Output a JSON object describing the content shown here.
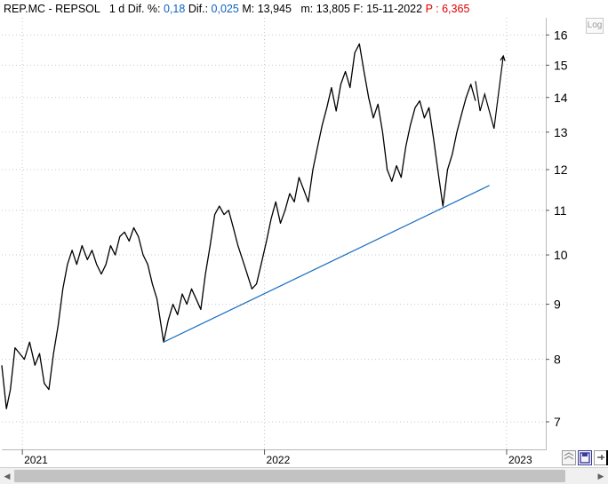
{
  "header": {
    "symbol": "REP.MC - REPSOL",
    "period": "1 d",
    "pct_label": "Dif. %:",
    "pct_value": "0,18",
    "dif_label": "Dif.:",
    "dif_value": "0,025",
    "max_label": "M:",
    "max_value": "13,945",
    "min_label": "m:",
    "min_value": "13,805",
    "date_label": "F:",
    "date_value": "15-11-2022",
    "p_label": "P :",
    "p_value": "6,365"
  },
  "log_button": "Log",
  "colors": {
    "price": "#000000",
    "trendline": "#1a6fbf",
    "grid": "#c8c8c8",
    "red": "#e00000"
  },
  "chart_data": {
    "type": "line",
    "scale": "log",
    "ylim": [
      6.6,
      16.6
    ],
    "y_ticks": [
      7,
      8,
      9,
      10,
      11,
      12,
      13,
      14,
      15,
      16
    ],
    "x_ticks": [
      "2021",
      "2022",
      "2023"
    ],
    "xlim": [
      "2020-12-01",
      "2023-03-01"
    ],
    "grid": true,
    "series": [
      {
        "kind": "price",
        "points": [
          [
            "2020-12-01",
            7.9
          ],
          [
            "2020-12-08",
            7.2
          ],
          [
            "2020-12-14",
            7.5
          ],
          [
            "2020-12-21",
            8.2
          ],
          [
            "2021-01-04",
            8.0
          ],
          [
            "2021-01-12",
            8.3
          ],
          [
            "2021-01-20",
            7.9
          ],
          [
            "2021-01-27",
            8.1
          ],
          [
            "2021-02-03",
            7.6
          ],
          [
            "2021-02-10",
            7.5
          ],
          [
            "2021-02-17",
            8.1
          ],
          [
            "2021-02-24",
            8.6
          ],
          [
            "2021-03-03",
            9.3
          ],
          [
            "2021-03-10",
            9.8
          ],
          [
            "2021-03-17",
            10.1
          ],
          [
            "2021-03-24",
            9.8
          ],
          [
            "2021-04-01",
            10.2
          ],
          [
            "2021-04-09",
            9.9
          ],
          [
            "2021-04-16",
            10.1
          ],
          [
            "2021-04-23",
            9.8
          ],
          [
            "2021-04-30",
            9.6
          ],
          [
            "2021-05-07",
            9.8
          ],
          [
            "2021-05-14",
            10.2
          ],
          [
            "2021-05-21",
            10.0
          ],
          [
            "2021-05-28",
            10.4
          ],
          [
            "2021-06-04",
            10.5
          ],
          [
            "2021-06-11",
            10.3
          ],
          [
            "2021-06-18",
            10.6
          ],
          [
            "2021-06-25",
            10.4
          ],
          [
            "2021-07-02",
            10.0
          ],
          [
            "2021-07-09",
            9.8
          ],
          [
            "2021-07-16",
            9.4
          ],
          [
            "2021-07-23",
            9.1
          ],
          [
            "2021-08-02",
            8.3
          ],
          [
            "2021-08-09",
            8.7
          ],
          [
            "2021-08-16",
            9.0
          ],
          [
            "2021-08-23",
            8.8
          ],
          [
            "2021-08-30",
            9.2
          ],
          [
            "2021-09-06",
            9.0
          ],
          [
            "2021-09-13",
            9.3
          ],
          [
            "2021-09-20",
            9.1
          ],
          [
            "2021-09-27",
            8.9
          ],
          [
            "2021-10-04",
            9.6
          ],
          [
            "2021-10-11",
            10.2
          ],
          [
            "2021-10-18",
            10.9
          ],
          [
            "2021-10-25",
            11.1
          ],
          [
            "2021-11-01",
            10.9
          ],
          [
            "2021-11-08",
            11.0
          ],
          [
            "2021-11-15",
            10.6
          ],
          [
            "2021-11-22",
            10.2
          ],
          [
            "2021-11-29",
            9.9
          ],
          [
            "2021-12-06",
            9.6
          ],
          [
            "2021-12-13",
            9.3
          ],
          [
            "2021-12-20",
            9.4
          ],
          [
            "2021-12-27",
            9.8
          ],
          [
            "2022-01-04",
            10.3
          ],
          [
            "2022-01-11",
            10.8
          ],
          [
            "2022-01-18",
            11.2
          ],
          [
            "2022-01-25",
            10.7
          ],
          [
            "2022-02-01",
            11.0
          ],
          [
            "2022-02-08",
            11.4
          ],
          [
            "2022-02-15",
            11.2
          ],
          [
            "2022-02-22",
            11.8
          ],
          [
            "2022-03-01",
            11.5
          ],
          [
            "2022-03-08",
            11.2
          ],
          [
            "2022-03-15",
            12.0
          ],
          [
            "2022-03-22",
            12.6
          ],
          [
            "2022-03-29",
            13.2
          ],
          [
            "2022-04-05",
            13.7
          ],
          [
            "2022-04-12",
            14.3
          ],
          [
            "2022-04-19",
            13.6
          ],
          [
            "2022-04-26",
            14.4
          ],
          [
            "2022-05-03",
            14.8
          ],
          [
            "2022-05-10",
            14.3
          ],
          [
            "2022-05-17",
            15.4
          ],
          [
            "2022-05-24",
            15.7
          ],
          [
            "2022-05-31",
            14.8
          ],
          [
            "2022-06-07",
            14.0
          ],
          [
            "2022-06-14",
            13.4
          ],
          [
            "2022-06-21",
            13.8
          ],
          [
            "2022-06-28",
            13.0
          ],
          [
            "2022-07-05",
            12.0
          ],
          [
            "2022-07-12",
            11.7
          ],
          [
            "2022-07-19",
            12.1
          ],
          [
            "2022-07-26",
            11.8
          ],
          [
            "2022-08-02",
            12.6
          ],
          [
            "2022-08-09",
            13.2
          ],
          [
            "2022-08-16",
            13.7
          ],
          [
            "2022-08-23",
            13.9
          ],
          [
            "2022-08-30",
            13.4
          ],
          [
            "2022-09-06",
            13.7
          ],
          [
            "2022-09-13",
            12.8
          ],
          [
            "2022-09-20",
            11.9
          ],
          [
            "2022-09-27",
            11.1
          ],
          [
            "2022-10-04",
            12.0
          ],
          [
            "2022-10-11",
            12.4
          ],
          [
            "2022-10-18",
            13.0
          ],
          [
            "2022-10-25",
            13.5
          ],
          [
            "2022-11-01",
            14.0
          ],
          [
            "2022-11-08",
            14.4
          ],
          [
            "2022-11-15",
            13.9
          ]
        ]
      },
      {
        "kind": "trendline",
        "points": [
          [
            "2021-08-02",
            8.3
          ],
          [
            "2022-12-06",
            11.6
          ]
        ]
      },
      {
        "kind": "projection",
        "points": [
          [
            "2022-11-15",
            14.5
          ],
          [
            "2022-11-22",
            13.6
          ],
          [
            "2022-11-29",
            14.1
          ],
          [
            "2022-12-13",
            13.1
          ],
          [
            "2022-12-27",
            15.3
          ]
        ]
      }
    ]
  }
}
